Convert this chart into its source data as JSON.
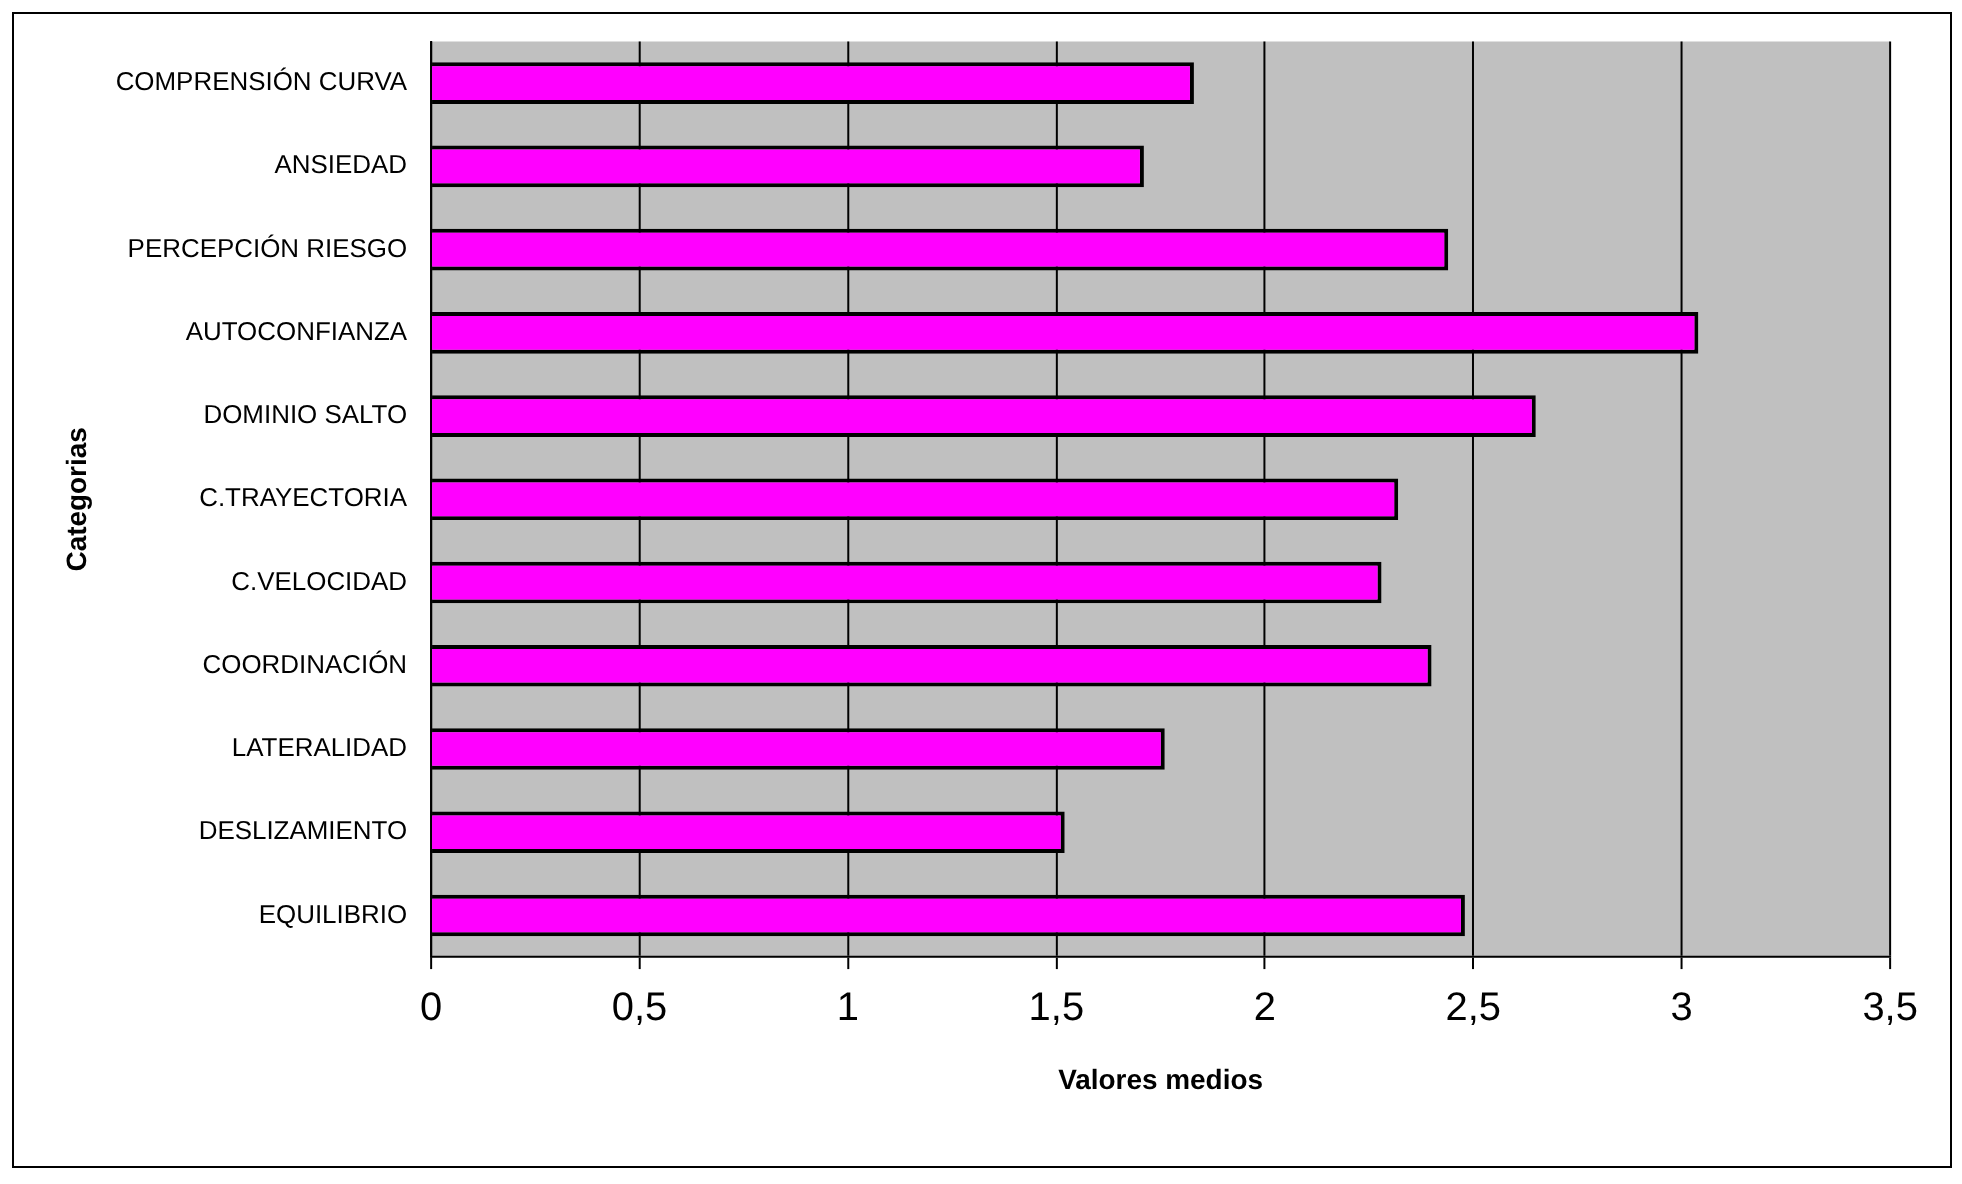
{
  "chart_data": {
    "type": "bar",
    "orientation": "horizontal",
    "xlabel": "Valores medios",
    "ylabel": "Categorias",
    "categories": [
      "COMPRENSIÓN CURVA",
      "ANSIEDAD",
      "PERCEPCIÓN RIESGO",
      "AUTOCONFIANZA",
      "DOMINIO SALTO",
      "C.TRAYECTORIA",
      "C.VELOCIDAD",
      "COORDINACIÓN",
      "LATERALIDAD",
      "DESLIZAMIENTO",
      "EQUILIBRIO"
    ],
    "values": [
      1.83,
      1.71,
      2.44,
      3.04,
      2.65,
      2.32,
      2.28,
      2.4,
      1.76,
      1.52,
      2.48
    ],
    "color": "#ff00ff",
    "xlim": [
      0,
      3.5
    ],
    "xticks": [
      {
        "value": 0,
        "label": "0"
      },
      {
        "value": 0.5,
        "label": "0,5"
      },
      {
        "value": 1,
        "label": "1"
      },
      {
        "value": 1.5,
        "label": "1,5"
      },
      {
        "value": 2,
        "label": "2"
      },
      {
        "value": 2.5,
        "label": "2,5"
      },
      {
        "value": 3,
        "label": "3"
      },
      {
        "value": 3.5,
        "label": "3,5"
      }
    ],
    "grid": "x",
    "legend": false
  }
}
